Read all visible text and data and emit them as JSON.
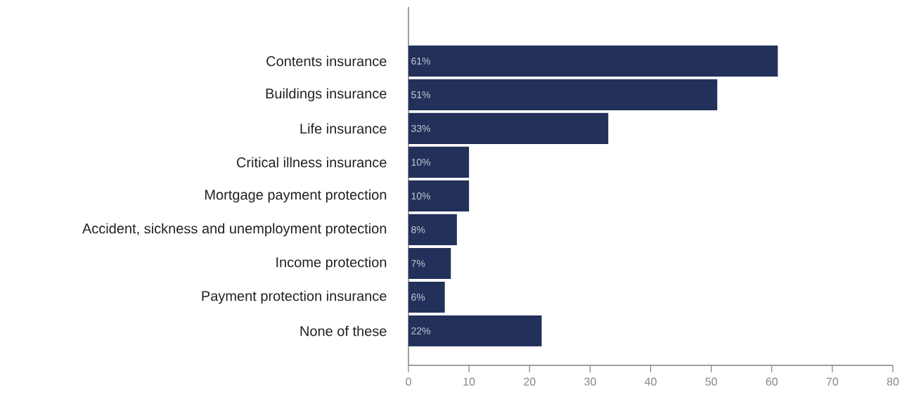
{
  "chart_data": {
    "type": "bar",
    "orientation": "horizontal",
    "categories": [
      "Contents insurance",
      "Buildings insurance",
      "Life insurance",
      "Critical illness insurance",
      "Mortgage payment protection",
      "Accident, sickness and unemployment protection",
      "Income protection",
      "Payment protection insurance",
      "None of these"
    ],
    "values": [
      61,
      51,
      33,
      10,
      10,
      8,
      7,
      6,
      22
    ],
    "value_labels": [
      "61%",
      "51%",
      "33%",
      "10%",
      "10%",
      "8%",
      "7%",
      "6%",
      "22%"
    ],
    "color": "#23305a",
    "xlim": [
      0,
      80
    ],
    "xticks": [
      0,
      10,
      20,
      30,
      40,
      50,
      60,
      70,
      80
    ]
  }
}
